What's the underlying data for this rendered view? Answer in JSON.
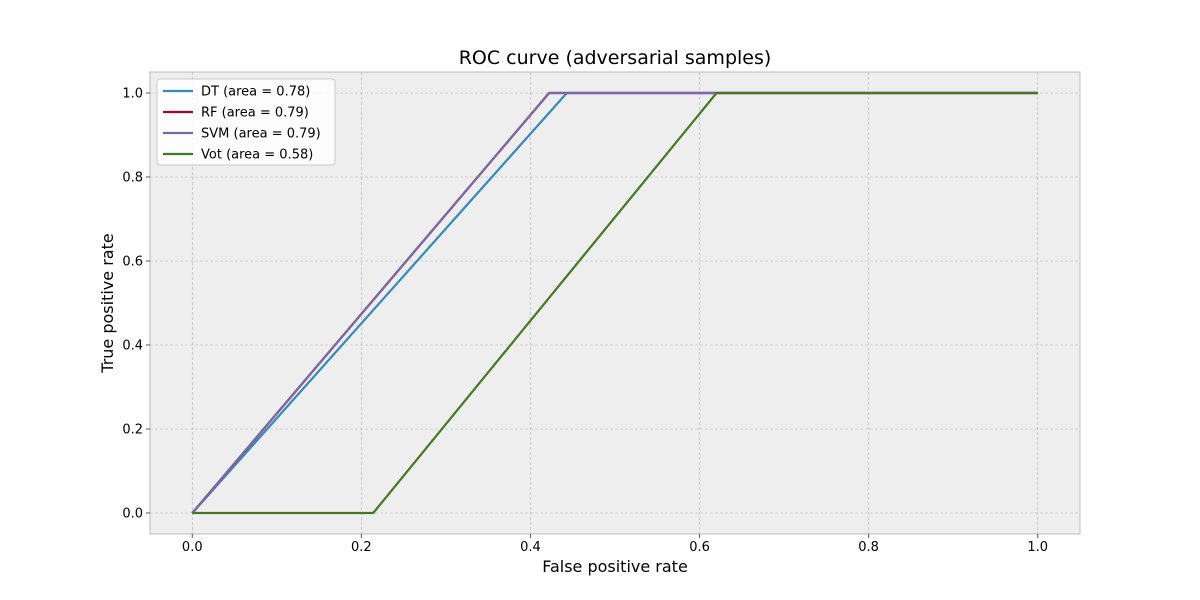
{
  "chart_data": {
    "type": "line",
    "title": "ROC curve (adversarial samples)",
    "xlabel": "False positive rate",
    "ylabel": "True positive rate",
    "xlim": [
      -0.05,
      1.05
    ],
    "ylim": [
      -0.05,
      1.05
    ],
    "x_ticks": [
      "0.0",
      "0.2",
      "0.4",
      "0.6",
      "0.8",
      "1.0"
    ],
    "y_ticks": [
      "0.0",
      "0.2",
      "0.4",
      "0.6",
      "0.8",
      "1.0"
    ],
    "grid": true,
    "legend_position": "top-left",
    "series": [
      {
        "name": "DT (area = 0.78)",
        "color": "#348abd",
        "x": [
          0.0,
          0.443,
          1.0
        ],
        "y": [
          0.0,
          1.0,
          1.0
        ]
      },
      {
        "name": "RF (area = 0.79)",
        "color": "#a60628",
        "x": [
          0.0,
          0.422,
          1.0
        ],
        "y": [
          0.0,
          1.0,
          1.0
        ]
      },
      {
        "name": "SVM (area = 0.79)",
        "color": "#7a68a6",
        "x": [
          0.0,
          0.422,
          1.0
        ],
        "y": [
          0.0,
          1.0,
          1.0
        ]
      },
      {
        "name": "Vot (area = 0.58)",
        "color": "#467821",
        "x": [
          0.0,
          0.214,
          0.62,
          1.0
        ],
        "y": [
          0.0,
          0.0,
          1.0,
          1.0
        ]
      }
    ]
  }
}
